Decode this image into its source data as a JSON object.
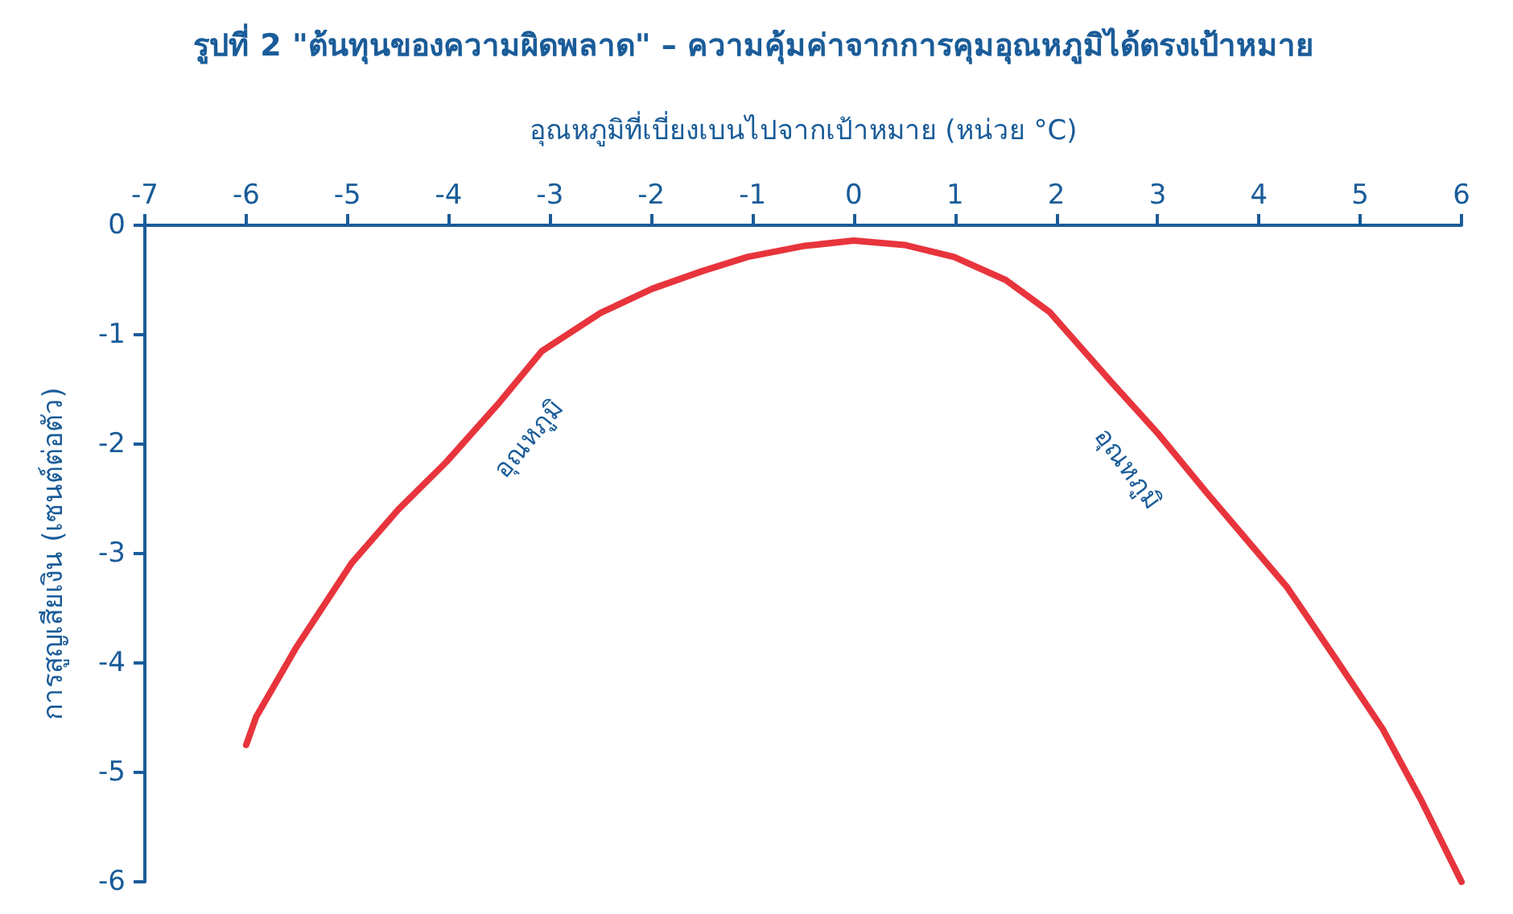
{
  "chart_data": {
    "type": "line",
    "title": "รูปที่ 2 \"ต้นทุนของความผิดพลาด\" – ความคุ้มค่าจากการคุมอุณหภูมิได้ตรงเป้าหมาย",
    "xlabel": "อุณหภูมิที่เบี่ยงเบนไปจากเป้าหมาย (หน่วย °C)",
    "ylabel": "การสูญเสียเงิน (เซนต์ต่อตัว)",
    "x": [
      -6.0,
      -5.9,
      -5.5,
      -4.96,
      -4.5,
      -4.02,
      -3.5,
      -3.08,
      -2.5,
      -1.99,
      -1.5,
      -1.05,
      -0.5,
      0,
      0.5,
      0.99,
      1.5,
      1.93,
      2.55,
      3.0,
      3.49,
      4.28,
      4.75,
      5.22,
      5.6,
      6.0
    ],
    "series": [
      {
        "color": "#e8343c",
        "values": [
          -4.75,
          -4.49,
          -3.85,
          -3.09,
          -2.6,
          -2.16,
          -1.62,
          -1.15,
          -0.8,
          -0.58,
          -0.42,
          -0.29,
          -0.19,
          -0.14,
          -0.18,
          -0.29,
          -0.5,
          -0.79,
          -1.44,
          -1.9,
          -2.45,
          -3.31,
          -3.95,
          -4.6,
          -5.25,
          -6.0
        ]
      }
    ],
    "xlim": [
      -7,
      6
    ],
    "xticks": [
      -7,
      -6,
      -5,
      -4,
      -3,
      -2,
      -1,
      0,
      1,
      2,
      3,
      4,
      5,
      6
    ],
    "ylim": [
      -6,
      0
    ],
    "yticks": [
      -6,
      -5,
      -4,
      -3,
      -2,
      -1,
      0
    ],
    "grid": false,
    "marker": "none",
    "line_style": "solid",
    "annotations": [
      {
        "text": "อุณหภูมิ",
        "x": -3.5,
        "y": -1.62
      },
      {
        "text": "อุณหภูมิ",
        "x": 3.0,
        "y": -1.9
      }
    ]
  }
}
